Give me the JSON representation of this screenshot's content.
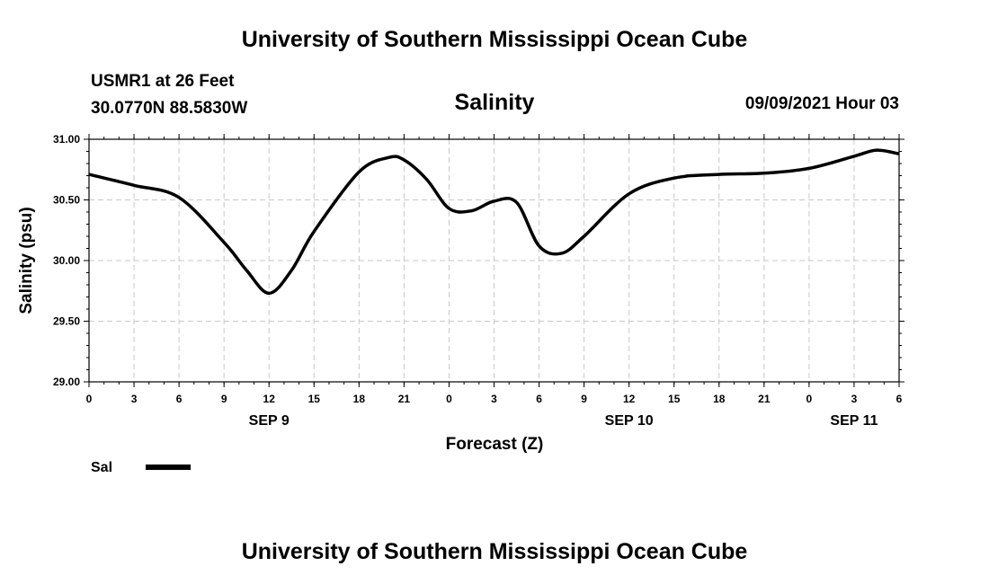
{
  "header": {
    "title": "University of Southern Mississippi Ocean Cube",
    "station_line": "USMR1 at 26 Feet",
    "coords": "30.0770N  88.5830W",
    "variable": "Salinity",
    "datetime": "09/09/2021 Hour 03"
  },
  "footer": {
    "title": "University of Southern Mississippi Ocean Cube"
  },
  "legend": {
    "label": "Sal",
    "color": "#000000"
  },
  "chart_data": {
    "type": "line",
    "title": "Salinity",
    "xlabel": "Forecast (Z)",
    "ylabel": "Salinity (psu)",
    "ylim": [
      29.0,
      31.0
    ],
    "yticks": [
      "29.00",
      "29.50",
      "30.00",
      "30.50",
      "31.00"
    ],
    "xlim": [
      0,
      54
    ],
    "xticks": [
      "0",
      "3",
      "6",
      "9",
      "12",
      "15",
      "18",
      "21",
      "0",
      "3",
      "6",
      "9",
      "12",
      "15",
      "18",
      "21",
      "0",
      "3",
      "6"
    ],
    "date_labels": [
      {
        "label": "SEP 9",
        "hour": 12
      },
      {
        "label": "SEP 10",
        "hour": 36
      },
      {
        "label": "SEP 11",
        "hour": 51
      }
    ],
    "grid": true,
    "legend_position": "bottom-left",
    "series": [
      {
        "name": "Sal",
        "color": "#000000",
        "x": [
          0,
          3,
          6,
          9,
          10.5,
          12,
          13.5,
          15,
          18,
          20,
          21,
          22.5,
          24,
          25.5,
          27,
          28.5,
          30,
          31.5,
          33,
          36,
          39,
          42,
          45,
          48,
          51,
          52.5,
          54
        ],
        "y": [
          30.71,
          30.62,
          30.52,
          30.15,
          29.92,
          29.73,
          29.92,
          30.24,
          30.73,
          30.85,
          30.83,
          30.67,
          30.43,
          30.41,
          30.49,
          30.48,
          30.12,
          30.06,
          30.2,
          30.55,
          30.68,
          30.71,
          30.72,
          30.76,
          30.86,
          30.91,
          30.88
        ]
      }
    ]
  }
}
